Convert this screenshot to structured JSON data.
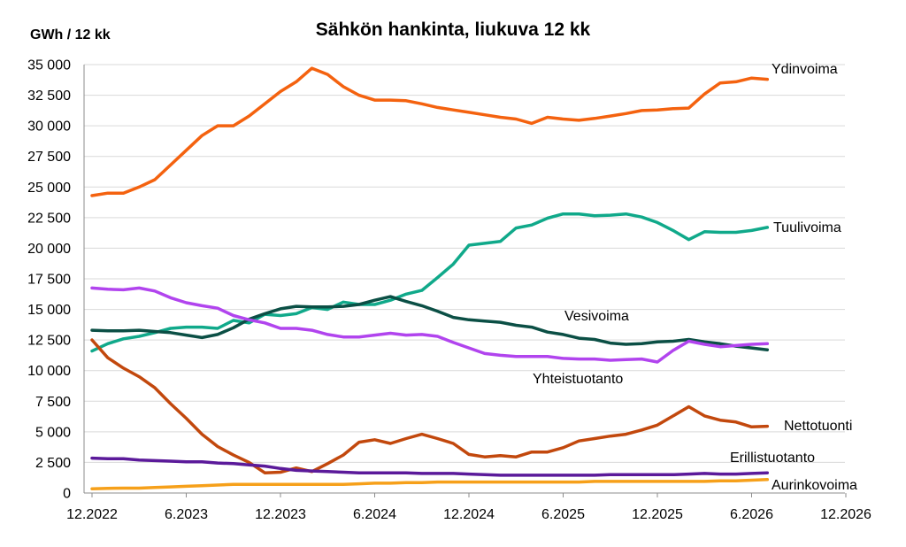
{
  "chart_data": {
    "type": "line",
    "title": "Sähkön hankinta, liukuva 12 kk",
    "ylabel": "GWh / 12 kk",
    "xlabel": "",
    "x_tick_labels": [
      "12.2022",
      "6.2023",
      "12.2023",
      "6.2024",
      "12.2024",
      "6.2025",
      "12.2025",
      "6.2026",
      "12.2026"
    ],
    "y_tick_labels": [
      "0",
      "2 500",
      "5 000",
      "7 500",
      "10 000",
      "12 500",
      "15 000",
      "17 500",
      "20 000",
      "22 500",
      "25 000",
      "27 500",
      "30 000",
      "32 500",
      "35 000"
    ],
    "ylim": [
      0,
      35000
    ],
    "x_start": "12.2022",
    "x_end": "12.2026",
    "grid": true,
    "legend": "labels next to lines",
    "series": [
      {
        "name": "Ydinvoima",
        "color": "#F4620F",
        "values": [
          24300,
          24500,
          24500,
          25000,
          25600,
          26800,
          28000,
          29200,
          30000,
          30000,
          30800,
          31800,
          32800,
          33600,
          34700,
          34200,
          33200,
          32500,
          32100,
          32100,
          32050,
          31800,
          31500,
          31300,
          31100,
          30900,
          30700,
          30550,
          30200,
          30700,
          30550,
          30450,
          30600,
          30800,
          31000,
          31250,
          31300,
          31400,
          31450,
          32600,
          33500,
          33600,
          33900,
          33800
        ]
      },
      {
        "name": "Tuulivoima",
        "color": "#10A98A",
        "values": [
          11600,
          12200,
          12600,
          12800,
          13100,
          13450,
          13550,
          13550,
          13450,
          14100,
          13900,
          14600,
          14500,
          14650,
          15150,
          15000,
          15600,
          15400,
          15400,
          15750,
          16250,
          16550,
          17600,
          18700,
          20250,
          20400,
          20550,
          21650,
          21900,
          22450,
          22800,
          22800,
          22650,
          22700,
          22800,
          22550,
          22100,
          21450,
          20700,
          21350,
          21300,
          21300,
          21450,
          21700
        ]
      },
      {
        "name": "Vesivoima",
        "color": "#0B4F45",
        "values": [
          13300,
          13250,
          13250,
          13300,
          13200,
          13100,
          12900,
          12700,
          12950,
          13500,
          14200,
          14650,
          15050,
          15250,
          15200,
          15200,
          15250,
          15400,
          15750,
          16050,
          15650,
          15300,
          14850,
          14350,
          14150,
          14050,
          13950,
          13700,
          13550,
          13150,
          12950,
          12650,
          12550,
          12250,
          12150,
          12200,
          12350,
          12400,
          12550,
          12350,
          12200,
          12000,
          11850,
          11700
        ]
      },
      {
        "name": "Yhteistuotanto",
        "color": "#B144EE",
        "values": [
          16750,
          16650,
          16600,
          16750,
          16500,
          15950,
          15550,
          15300,
          15100,
          14500,
          14150,
          13900,
          13450,
          13450,
          13300,
          12950,
          12750,
          12750,
          12900,
          13050,
          12900,
          12950,
          12800,
          12300,
          11850,
          11400,
          11250,
          11150,
          11150,
          11150,
          11000,
          10950,
          10950,
          10850,
          10900,
          10950,
          10700,
          11650,
          12400,
          12150,
          11950,
          12050,
          12150,
          12200
        ]
      },
      {
        "name": "Nettotuonti",
        "color": "#C2480D",
        "values": [
          12500,
          11050,
          10200,
          9500,
          8600,
          7300,
          6100,
          4800,
          3800,
          3100,
          2500,
          1650,
          1700,
          2050,
          1750,
          2400,
          3100,
          4150,
          4350,
          4050,
          4450,
          4800,
          4450,
          4050,
          3150,
          2950,
          3050,
          2950,
          3350,
          3350,
          3700,
          4250,
          4450,
          4650,
          4800,
          5150,
          5550,
          6300,
          7050,
          6300,
          5950,
          5800,
          5400,
          5450
        ]
      },
      {
        "name": "Erillistuotanto",
        "color": "#5B1A9A",
        "values": [
          2850,
          2800,
          2800,
          2700,
          2650,
          2600,
          2550,
          2550,
          2450,
          2400,
          2300,
          2200,
          2000,
          1850,
          1800,
          1750,
          1700,
          1650,
          1650,
          1650,
          1650,
          1600,
          1600,
          1600,
          1550,
          1500,
          1450,
          1450,
          1450,
          1450,
          1450,
          1450,
          1450,
          1500,
          1500,
          1500,
          1500,
          1500,
          1550,
          1600,
          1550,
          1550,
          1600,
          1650
        ]
      },
      {
        "name": "Aurinkovoima",
        "color": "#F6A01A",
        "values": [
          350,
          380,
          400,
          400,
          450,
          500,
          550,
          600,
          650,
          700,
          700,
          700,
          700,
          700,
          700,
          700,
          700,
          750,
          800,
          800,
          850,
          850,
          900,
          900,
          900,
          900,
          900,
          900,
          900,
          900,
          900,
          900,
          950,
          950,
          950,
          950,
          950,
          950,
          950,
          950,
          1000,
          1000,
          1050,
          1100
        ]
      }
    ]
  }
}
